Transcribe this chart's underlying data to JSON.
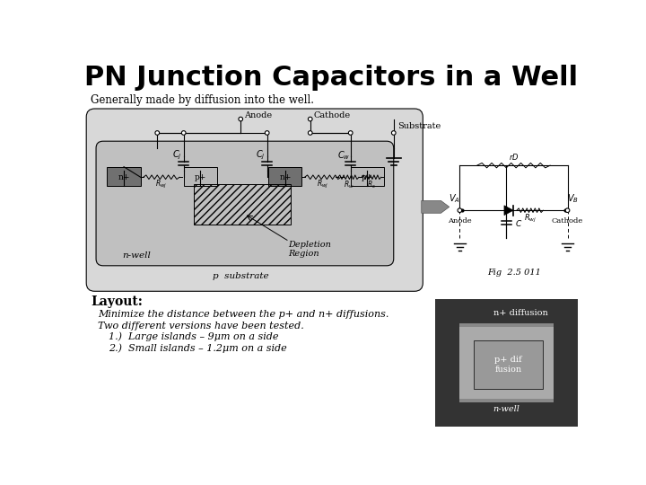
{
  "title": "PN Junction Capacitors in a Well",
  "title_fontsize": 22,
  "bg_color": "#ffffff",
  "subtitle": "Generally made by diffusion into the well.",
  "layout_text": "Layout:",
  "bullet1": "Minimize the distance between the p+ and n+ diffusions.",
  "bullet2": "Two different versions have been tested.",
  "bullet3a": "1.)  Large islands – 9μm on a side",
  "bullet3b": "2.)  Small islands – 1.2μm on a side",
  "fig_label": "Fig  2.5 011",
  "p_sub_color": "#d8d8d8",
  "n_well_color": "#c0c0c0",
  "nplus_color": "#707070",
  "pplus_color": "#b8b8b8",
  "layout_bg": "#888888",
  "layout_nplus": "#333333",
  "layout_pplus_bg": "#aaaaaa",
  "layout_pplus_box": "#999999"
}
